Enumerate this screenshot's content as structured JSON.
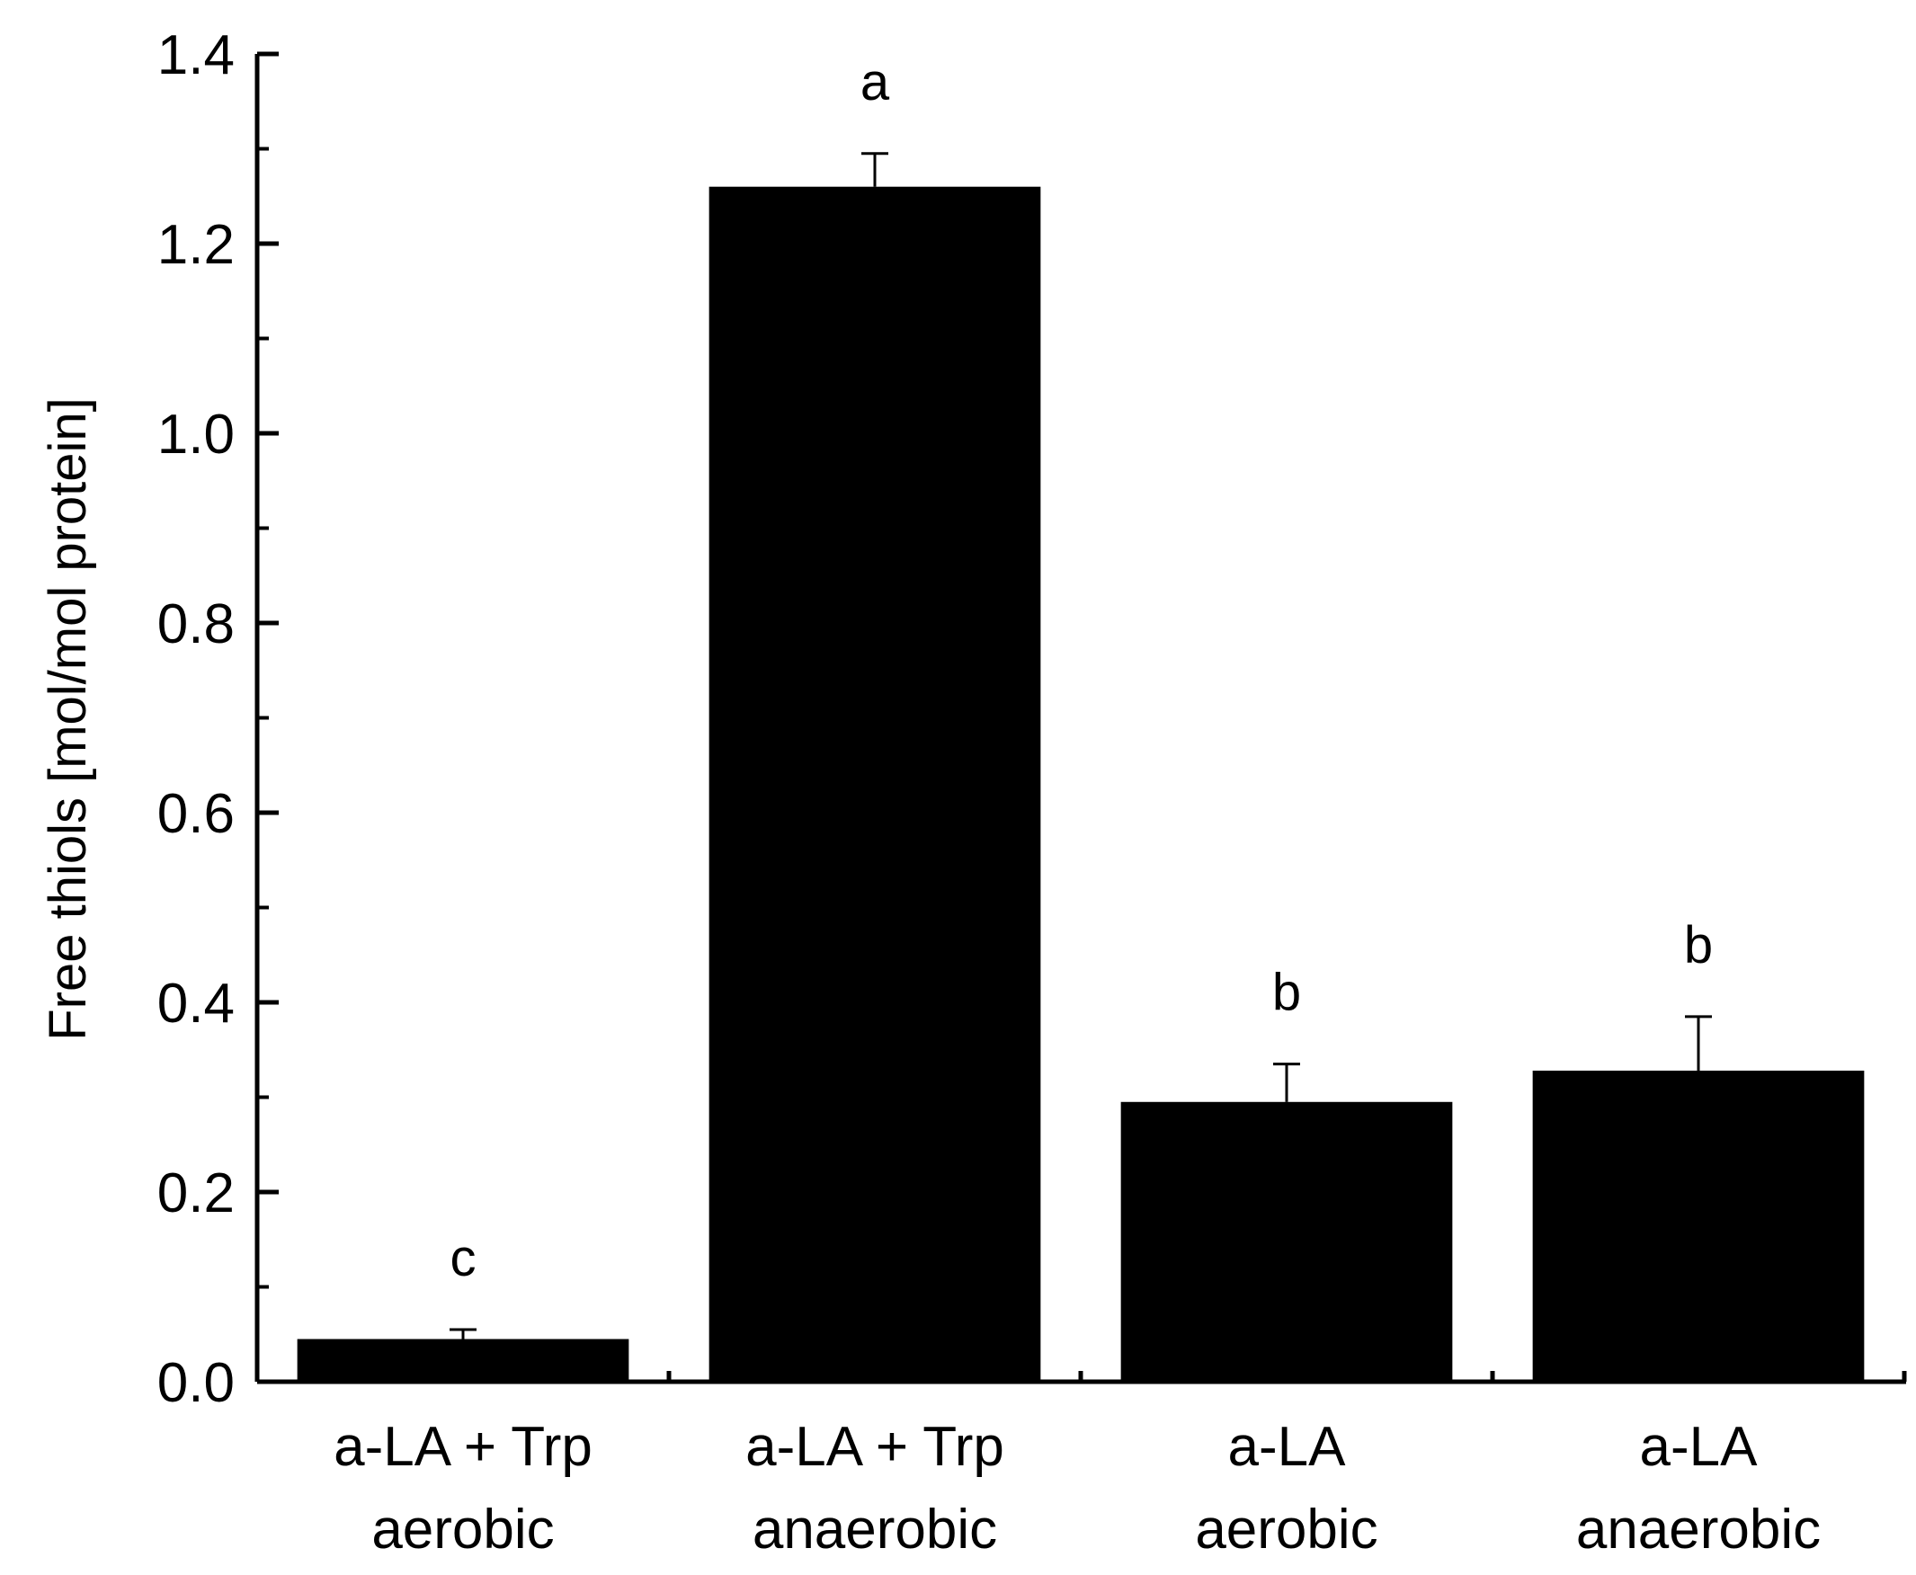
{
  "chart_data": {
    "type": "bar",
    "title": "",
    "xlabel": "",
    "ylabel": "Free thiols [mol/mol protein]",
    "ylim": [
      0,
      1.4
    ],
    "yticks": [
      "0.0",
      "0.2",
      "0.4",
      "0.6",
      "0.8",
      "1.0",
      "1.2",
      "1.4"
    ],
    "categories": [
      [
        "a-LA + Trp",
        "aerobic"
      ],
      [
        "a-LA + Trp",
        "anaerobic"
      ],
      [
        "a-LA",
        "aerobic"
      ],
      [
        "a-LA",
        "anaerobic"
      ]
    ],
    "values": [
      0.045,
      1.26,
      0.295,
      0.328
    ],
    "errors": [
      0.01,
      0.035,
      0.04,
      0.057
    ],
    "significance": [
      "c",
      "a",
      "b",
      "b"
    ],
    "bar_color": "#000000",
    "grid": false,
    "legend": "none"
  }
}
